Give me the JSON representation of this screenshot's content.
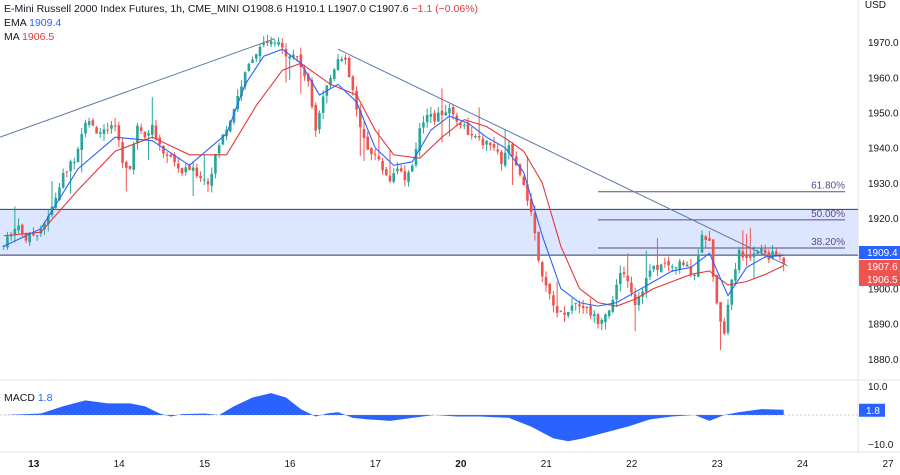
{
  "legend": {
    "title": "E-Mini Russell 2000 Index Futures, 1h, CME_MINI",
    "open_label": "O",
    "open": "1908.6",
    "high_label": "H",
    "high": "1910.1",
    "low_label": "L",
    "low": "1907.0",
    "close_label": "C",
    "close": "1907.6",
    "change": "−1.1 (−0.06%)",
    "ema_label": "EMA",
    "ema_value": "1909.4",
    "ma_label": "MA",
    "ma_value": "1906.5"
  },
  "macd_legend": {
    "label": "MACD",
    "value": "1.8"
  },
  "currency": "USD",
  "colors": {
    "up": "#26a69a",
    "down": "#ef5350",
    "ema": "#2962ff",
    "ma": "#e0393e",
    "zone_fill": "#d6e3ff",
    "zone_edge": "#2b3a67",
    "trend": "#5b79a6",
    "macd": "#2962ff"
  },
  "chart_data": {
    "type": "candlestick",
    "y_axis": {
      "ticks": [
        1880,
        1890,
        1900,
        1910,
        1920,
        1930,
        1940,
        1950,
        1960,
        1970
      ],
      "ylim": [
        1876,
        1978
      ]
    },
    "x_axis": {
      "ticks": [
        {
          "label": "13",
          "x": 0
        },
        {
          "label": "14",
          "x": 23
        },
        {
          "label": "15",
          "x": 46
        },
        {
          "label": "16",
          "x": 69
        },
        {
          "label": "17",
          "x": 92
        },
        {
          "label": "20",
          "x": 115
        },
        {
          "label": "21",
          "x": 138
        },
        {
          "label": "22",
          "x": 161
        },
        {
          "label": "23",
          "x": 184
        },
        {
          "label": "24",
          "x": 207
        },
        {
          "label": "27",
          "x": 230
        }
      ],
      "xlim": [
        -1,
        230
      ]
    },
    "path": [
      [
        0,
        1912
      ],
      [
        2,
        1916
      ],
      [
        4,
        1918
      ],
      [
        6,
        1914
      ],
      [
        9,
        1916
      ],
      [
        12,
        1920
      ],
      [
        16,
        1932
      ],
      [
        19,
        1937
      ],
      [
        22,
        1948
      ],
      [
        25,
        1945
      ],
      [
        28,
        1944
      ],
      [
        30,
        1947
      ],
      [
        32,
        1936
      ],
      [
        34,
        1934
      ],
      [
        36,
        1947
      ],
      [
        38,
        1944
      ],
      [
        40,
        1946
      ],
      [
        42,
        1940
      ],
      [
        45,
        1937
      ],
      [
        48,
        1933
      ],
      [
        50,
        1934
      ],
      [
        53,
        1932
      ],
      [
        55,
        1930
      ],
      [
        58,
        1941
      ],
      [
        61,
        1948
      ],
      [
        64,
        1958
      ],
      [
        67,
        1966
      ],
      [
        70,
        1969
      ],
      [
        73,
        1970
      ],
      [
        76,
        1967
      ],
      [
        79,
        1966
      ],
      [
        82,
        1958
      ],
      [
        84,
        1946
      ],
      [
        86,
        1955
      ],
      [
        88,
        1960
      ],
      [
        90,
        1966
      ],
      [
        92,
        1964
      ],
      [
        94,
        1956
      ],
      [
        96,
        1945
      ],
      [
        98,
        1940
      ],
      [
        100,
        1938
      ],
      [
        102,
        1934
      ],
      [
        104,
        1931
      ],
      [
        106,
        1935
      ],
      [
        108,
        1931
      ],
      [
        110,
        1934
      ],
      [
        112,
        1946
      ],
      [
        114,
        1950
      ],
      [
        116,
        1948
      ],
      [
        118,
        1950
      ],
      [
        120,
        1951
      ],
      [
        122,
        1948
      ],
      [
        124,
        1946
      ],
      [
        126,
        1943
      ],
      [
        128,
        1942
      ],
      [
        130,
        1941
      ],
      [
        132,
        1940
      ],
      [
        134,
        1936
      ],
      [
        136,
        1940
      ],
      [
        138,
        1934
      ],
      [
        140,
        1930
      ],
      [
        142,
        1922
      ],
      [
        144,
        1909
      ],
      [
        146,
        1900
      ],
      [
        148,
        1895
      ],
      [
        150,
        1893
      ],
      [
        152,
        1894
      ],
      [
        154,
        1896
      ],
      [
        156,
        1895
      ],
      [
        158,
        1893
      ],
      [
        160,
        1891
      ],
      [
        162,
        1893
      ],
      [
        164,
        1896
      ],
      [
        166,
        1905
      ],
      [
        168,
        1903
      ],
      [
        170,
        1896
      ],
      [
        172,
        1900
      ],
      [
        174,
        1905
      ],
      [
        176,
        1906
      ],
      [
        178,
        1907
      ],
      [
        180,
        1906
      ],
      [
        182,
        1907
      ],
      [
        184,
        1906
      ],
      [
        186,
        1904
      ],
      [
        188,
        1916
      ],
      [
        190,
        1913
      ],
      [
        192,
        1895
      ],
      [
        194,
        1888
      ],
      [
        196,
        1903
      ],
      [
        198,
        1910
      ],
      [
        200,
        1908
      ],
      [
        202,
        1910
      ],
      [
        204,
        1911
      ],
      [
        206,
        1909
      ],
      [
        208,
        1910
      ],
      [
        210,
        1907.6
      ]
    ],
    "ema": [
      [
        0,
        1912
      ],
      [
        10,
        1917
      ],
      [
        20,
        1934
      ],
      [
        30,
        1943
      ],
      [
        40,
        1942
      ],
      [
        50,
        1935
      ],
      [
        60,
        1944
      ],
      [
        65,
        1958
      ],
      [
        70,
        1966
      ],
      [
        75,
        1968
      ],
      [
        80,
        1964
      ],
      [
        85,
        1955
      ],
      [
        90,
        1958
      ],
      [
        95,
        1953
      ],
      [
        100,
        1940
      ],
      [
        105,
        1935
      ],
      [
        110,
        1936
      ],
      [
        115,
        1945
      ],
      [
        120,
        1949
      ],
      [
        125,
        1947
      ],
      [
        130,
        1943
      ],
      [
        135,
        1940
      ],
      [
        140,
        1933
      ],
      [
        145,
        1915
      ],
      [
        150,
        1900
      ],
      [
        155,
        1896
      ],
      [
        160,
        1895
      ],
      [
        165,
        1896
      ],
      [
        170,
        1899
      ],
      [
        175,
        1902
      ],
      [
        180,
        1905
      ],
      [
        185,
        1906
      ],
      [
        190,
        1910
      ],
      [
        195,
        1898
      ],
      [
        200,
        1906
      ],
      [
        205,
        1909
      ],
      [
        210,
        1909.4
      ]
    ],
    "ma": [
      [
        0,
        1915
      ],
      [
        10,
        1916
      ],
      [
        20,
        1928
      ],
      [
        30,
        1939
      ],
      [
        40,
        1943
      ],
      [
        50,
        1938
      ],
      [
        60,
        1938
      ],
      [
        68,
        1952
      ],
      [
        75,
        1962
      ],
      [
        80,
        1964
      ],
      [
        88,
        1958
      ],
      [
        95,
        1955
      ],
      [
        100,
        1945
      ],
      [
        105,
        1938
      ],
      [
        112,
        1937
      ],
      [
        118,
        1943
      ],
      [
        124,
        1948
      ],
      [
        130,
        1946
      ],
      [
        136,
        1942
      ],
      [
        140,
        1939
      ],
      [
        145,
        1930
      ],
      [
        150,
        1912
      ],
      [
        155,
        1900
      ],
      [
        160,
        1896
      ],
      [
        165,
        1895
      ],
      [
        170,
        1897
      ],
      [
        175,
        1900
      ],
      [
        180,
        1902
      ],
      [
        185,
        1904
      ],
      [
        190,
        1905
      ],
      [
        195,
        1901
      ],
      [
        200,
        1902
      ],
      [
        205,
        1904
      ],
      [
        210,
        1906.5
      ]
    ],
    "support_zone": {
      "y_top": 1922.5,
      "y_bottom": 1909.5
    },
    "trendlines": [
      {
        "name": "upper-trendline-1",
        "from": [
          -1,
          1943
        ],
        "to": [
          73,
          1971
        ]
      },
      {
        "name": "upper-trendline-2",
        "from": [
          90,
          1968
        ],
        "to": [
          211,
          1906.5
        ]
      }
    ],
    "fib_levels": [
      {
        "label": "61.80%",
        "y": 1927.5,
        "x_start": 160
      },
      {
        "label": "50.00%",
        "y": 1919.5,
        "x_start": 160
      },
      {
        "label": "38.20%",
        "y": 1911.5,
        "x_start": 160
      }
    ],
    "price_labels": [
      {
        "value": "1909.4",
        "y": 1909.4,
        "kind": "ema"
      },
      {
        "value": "1907.6",
        "y": 1907.6,
        "kind": "price"
      },
      {
        "value": "1906.5",
        "y": 1906.5,
        "kind": "ma"
      }
    ],
    "macd": {
      "ylim": [
        -12,
        12
      ],
      "ticks": [
        {
          "label": "10.0",
          "y": 10
        },
        {
          "label": "−10.0",
          "y": -10
        }
      ],
      "current_label": "1.8",
      "current": 1.8,
      "histogram": [
        [
          0,
          0
        ],
        [
          10,
          0.5
        ],
        [
          16,
          3
        ],
        [
          22,
          5
        ],
        [
          28,
          4
        ],
        [
          34,
          4
        ],
        [
          38,
          3
        ],
        [
          42,
          0.5
        ],
        [
          45,
          -0.5
        ],
        [
          48,
          0.3
        ],
        [
          54,
          0.5
        ],
        [
          58,
          0
        ],
        [
          62,
          3
        ],
        [
          67,
          6
        ],
        [
          72,
          7.5
        ],
        [
          76,
          6
        ],
        [
          80,
          2
        ],
        [
          84,
          -0.5
        ],
        [
          87,
          0.5
        ],
        [
          90,
          1
        ],
        [
          94,
          -1
        ],
        [
          98,
          -1.5
        ],
        [
          104,
          -2
        ],
        [
          110,
          -1
        ],
        [
          116,
          0
        ],
        [
          122,
          -0.5
        ],
        [
          128,
          -0.5
        ],
        [
          136,
          -1
        ],
        [
          142,
          -4
        ],
        [
          148,
          -8
        ],
        [
          152,
          -9
        ],
        [
          156,
          -8
        ],
        [
          162,
          -6
        ],
        [
          168,
          -4
        ],
        [
          174,
          -1.5
        ],
        [
          180,
          -0.5
        ],
        [
          186,
          0
        ],
        [
          190,
          -2
        ],
        [
          194,
          0
        ],
        [
          198,
          1
        ],
        [
          204,
          2
        ],
        [
          210,
          1.8
        ]
      ]
    }
  }
}
